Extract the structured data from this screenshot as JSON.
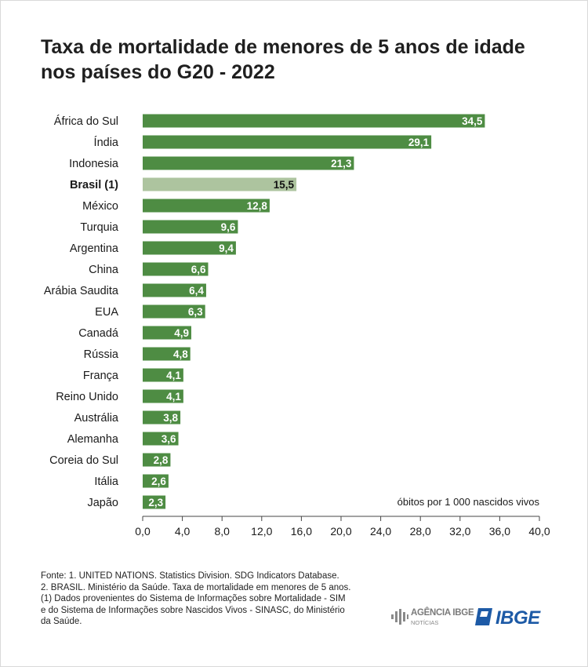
{
  "title": "Taxa de mortalidade de menores de 5 anos de idade nos países do G20 - 2022",
  "chart_data": {
    "type": "bar",
    "orientation": "horizontal",
    "categories": [
      "África do Sul",
      "Índia",
      "Indonesia",
      "Brasil (1)",
      "México",
      "Turquia",
      "Argentina",
      "China",
      "Arábia Saudita",
      "EUA",
      "Canadá",
      "Rússia",
      "França",
      "Reino Unido",
      "Austrália",
      "Alemanha",
      "Coreia do Sul",
      "Itália",
      "Japão"
    ],
    "value_labels": [
      "34,5",
      "29,1",
      "21,3",
      "15,5",
      "12,8",
      "9,6",
      "9,4",
      "6,6",
      "6,4",
      "6,3",
      "4,9",
      "4,8",
      "4,1",
      "4,1",
      "3,8",
      "3,6",
      "2,8",
      "2,6",
      "2,3"
    ],
    "values": [
      34.5,
      29.1,
      21.3,
      15.5,
      12.8,
      9.6,
      9.4,
      6.6,
      6.4,
      6.3,
      4.9,
      4.8,
      4.1,
      4.1,
      3.8,
      3.6,
      2.8,
      2.6,
      2.3
    ],
    "highlight": "Brasil (1)",
    "xlim": [
      0,
      40
    ],
    "ticks": [
      "0,0",
      "4,0",
      "8,0",
      "12,0",
      "16,0",
      "20,0",
      "24,0",
      "28,0",
      "32,0",
      "36,0",
      "40,0"
    ],
    "unit_label": "óbitos por 1 000 nascidos vivos",
    "grid": false,
    "colors": {
      "bar": "#4e8c43",
      "highlight": "#adc49f",
      "axis": "#444444"
    }
  },
  "source": {
    "lines": [
      "Fonte: 1. UNITED NATIONS. Statistics Division. SDG Indicators Database.",
      "2. BRASIL. Ministério da Saúde. Taxa de mortalidade em menores de 5 anos.",
      "(1) Dados provenientes do Sistema de Informações sobre Mortalidade - SIM",
      "e do Sistema de Informações sobre Nascidos Vivos - SINASC, do Ministério",
      "da Saúde."
    ]
  },
  "logos": {
    "agencia_line1": "AGÊNCIA IBGE",
    "agencia_line2": "NOTÍCIAS",
    "ibge": "IBGE",
    "icons": [
      "agencia-ibge-logo-icon",
      "ibge-logo-icon"
    ],
    "brand_color": "#1d5aa6"
  }
}
